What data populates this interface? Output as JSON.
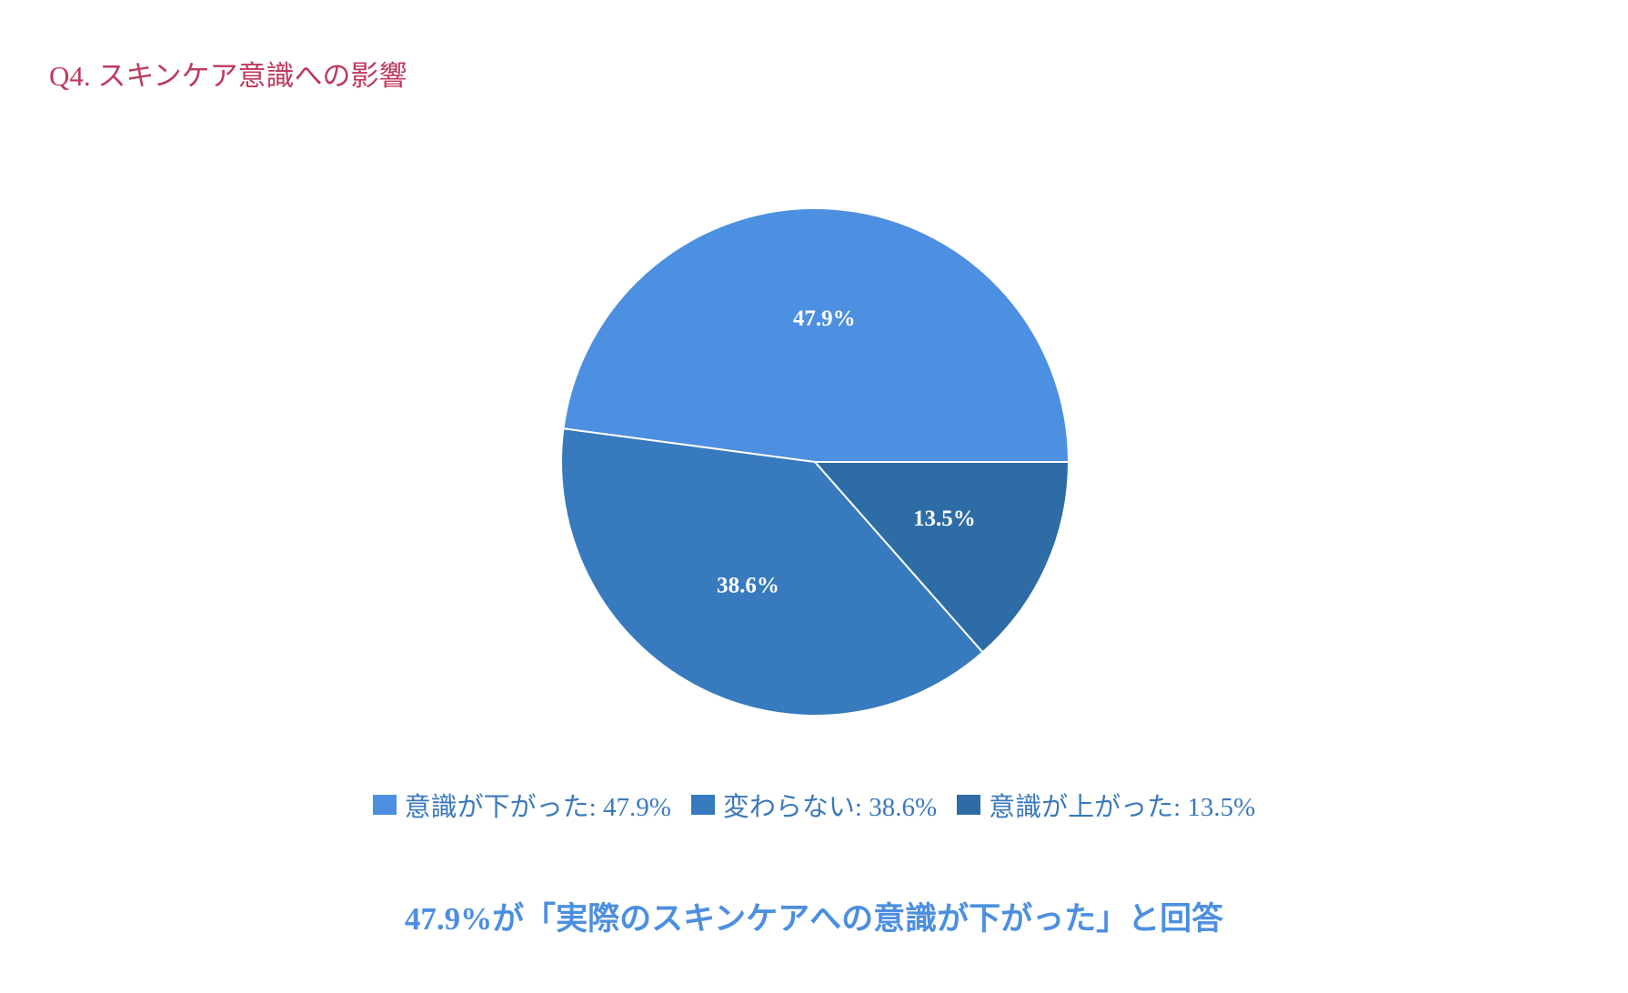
{
  "title": "Q4. スキンケア意識への影響",
  "conclusion": "47.9%が「実際のスキンケアへの意識が下がった」と回答",
  "colors": {
    "title": "#c0395e",
    "legend_text": "#3a79bd",
    "conclusion": "#4c8fe0",
    "slice_label": "#ffffff",
    "slice_border": "#ffffff"
  },
  "chart_data": {
    "type": "pie",
    "title": "",
    "legend_position": "bottom",
    "start_angle_deg": 0,
    "direction": "counterclockwise",
    "slices": [
      {
        "label": "意識が下がった",
        "value": 47.9,
        "display": "47.9%",
        "legend": "意識が下がった: 47.9%",
        "color": "#4d8fe0"
      },
      {
        "label": "変わらない",
        "value": 38.6,
        "display": "38.6%",
        "legend": "変わらない: 38.6%",
        "color": "#377abe"
      },
      {
        "label": "意識が上がった",
        "value": 13.5,
        "display": "13.5%",
        "legend": "意識が上がった: 13.5%",
        "color": "#2d6ca4"
      }
    ]
  }
}
